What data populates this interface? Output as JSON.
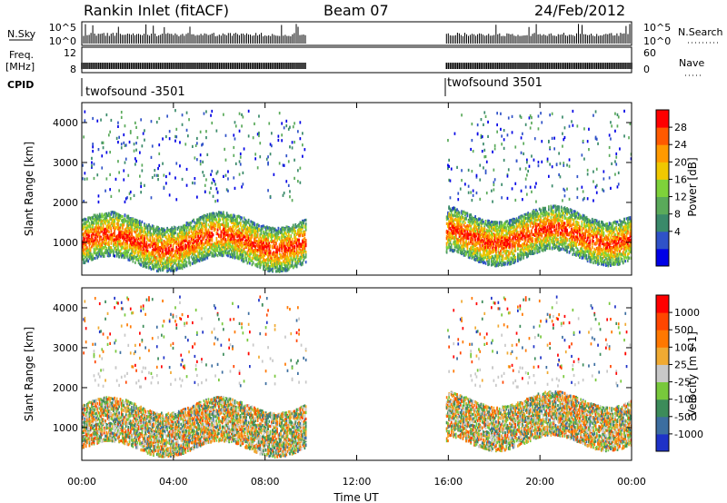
{
  "header": {
    "station": "Rankin Inlet (fitACF)",
    "beam": "Beam 07",
    "date": "24/Feb/2012"
  },
  "strips": {
    "nsky_label": "N.Sky",
    "nsky_ticks": [
      "10^5",
      "10^0"
    ],
    "nsearch_label": "N.Search",
    "freq_label": "Freq.",
    "freq_unit": "[MHz]",
    "freq_ticks": [
      "12",
      "8"
    ],
    "nave_label": "Nave",
    "nave_ticks": [
      "60",
      "0"
    ],
    "cpid_label": "CPID",
    "cpid_1": "twofsound -3501",
    "cpid_2": "twofsound 3501"
  },
  "chart_data": [
    {
      "type": "heatmap",
      "name": "power",
      "ylabel": "Slant Range [km]",
      "yticks": [
        "4000",
        "3000",
        "2000",
        "1000"
      ],
      "colorbar_label": "Power [dB]",
      "colorbar_ticks": [
        "28",
        "24",
        "20",
        "16",
        "12",
        "8",
        "4"
      ],
      "colors": [
        "#0000e6",
        "#2f52c8",
        "#3a8a6a",
        "#5aaa5a",
        "#7ed23a",
        "#f0c800",
        "#ff9a00",
        "#ff5a00",
        "#ff0000"
      ],
      "y_range_km": [
        180,
        4500
      ],
      "x_range_h": [
        0,
        24
      ],
      "data_gaps_h": [
        [
          9.8,
          15.9
        ]
      ]
    },
    {
      "type": "heatmap",
      "name": "velocity",
      "ylabel": "Slant Range [km]",
      "yticks": [
        "4000",
        "3000",
        "2000",
        "1000"
      ],
      "colorbar_label": "Velocity [m s-1]",
      "colorbar_ticks": [
        "1000",
        "500",
        "100",
        "25",
        "-25",
        "-100",
        "-500",
        "-1000"
      ],
      "colors": [
        "#1e32c8",
        "#3c6ea0",
        "#3c8c5a",
        "#78c83c",
        "#c8c8c8",
        "#f0aa32",
        "#ff7800",
        "#ff4600",
        "#ff0000"
      ],
      "y_range_km": [
        180,
        4500
      ],
      "x_range_h": [
        0,
        24
      ],
      "data_gaps_h": [
        [
          9.8,
          15.9
        ]
      ]
    }
  ],
  "xaxis": {
    "label": "Time UT",
    "ticks": [
      "00:00",
      "04:00",
      "08:00",
      "12:00",
      "16:00",
      "20:00",
      "00:00"
    ]
  }
}
